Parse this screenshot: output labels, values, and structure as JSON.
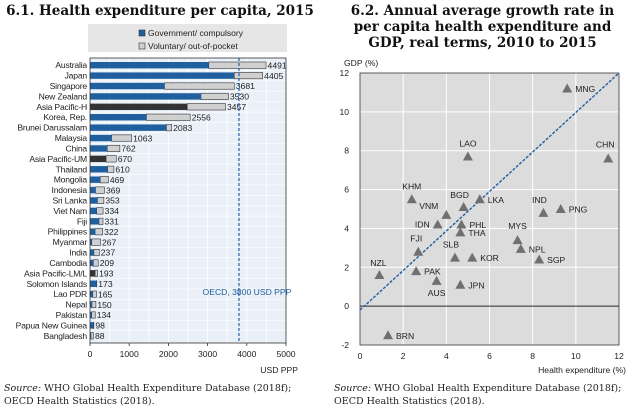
{
  "chart_data": [
    {
      "type": "bar",
      "orientation": "horizontal",
      "stacked": true,
      "title": "6.1. Health expenditure per capita, 2015",
      "xlabel": "USD PPP",
      "xlim": [
        0,
        5000
      ],
      "xticks": [
        "0",
        "1000",
        "2000",
        "3000",
        "4000",
        "5000"
      ],
      "grid": true,
      "legend_position": "top",
      "categories": [
        "Australia",
        "Japan",
        "Singapore",
        "New Zealand",
        "Asia Pacific-H",
        "Korea, Rep.",
        "Brunei Darussalam",
        "Malaysia",
        "China",
        "Asia Pacific-UM",
        "Thailand",
        "Mongolia",
        "Indonesia",
        "Sri Lanka",
        "Viet Nam",
        "Fiji",
        "Philippines",
        "Myanmar",
        "India",
        "Cambodia",
        "Asia Pacific-LM/L",
        "Solomon Islands",
        "Lao PDR",
        "Nepal",
        "Pakistan",
        "Papua New Guinea",
        "Bangladesh"
      ],
      "totals": [
        4491,
        4405,
        3681,
        3530,
        3457,
        2556,
        2083,
        1063,
        762,
        670,
        610,
        469,
        369,
        353,
        334,
        331,
        322,
        267,
        237,
        209,
        193,
        173,
        165,
        150,
        134,
        98,
        88
      ],
      "series": [
        {
          "name": "Government/ compulsory",
          "color": "#1f5f9e",
          "aggregate_color": "#333333",
          "values": [
            3030,
            3680,
            1900,
            2830,
            2480,
            1440,
            1950,
            550,
            440,
            410,
            450,
            260,
            140,
            190,
            170,
            230,
            130,
            45,
            100,
            85,
            130,
            170,
            70,
            50,
            45,
            90,
            25
          ]
        },
        {
          "name": "Voluntary/ out-of-pocket",
          "color": "#d0d0d0",
          "values": [
            1461,
            725,
            1781,
            700,
            977,
            1116,
            133,
            513,
            322,
            260,
            160,
            209,
            229,
            163,
            164,
            101,
            192,
            222,
            137,
            124,
            63,
            3,
            95,
            100,
            89,
            8,
            63
          ]
        }
      ],
      "aggregate_rows": [
        "Asia Pacific-H",
        "Asia Pacific-UM",
        "Asia Pacific-LM/L"
      ],
      "reference_line": {
        "label": "OECD, 3800 USD PPP",
        "value": 3800,
        "color": "#1f5f9e"
      },
      "source": {
        "prefix": "Source:",
        "text": "WHO Global Health Expenditure Database (2018f); OECD Health Statistics (2018)."
      }
    },
    {
      "type": "scatter",
      "title": "6.2. Annual average growth rate in per capita health expenditure and GDP, real terms, 2010 to 2015",
      "xlabel": "Health expenditure (%)",
      "ylabel": "GDP (%)",
      "xlim": [
        0,
        12
      ],
      "ylim": [
        -2,
        12
      ],
      "xticks": [
        "0",
        "2",
        "4",
        "6",
        "8",
        "10",
        "12"
      ],
      "yticks": [
        "-2",
        "0",
        "2",
        "4",
        "6",
        "8",
        "10",
        "12"
      ],
      "grid": true,
      "marker": "triangle",
      "marker_color": "#707070",
      "points": [
        {
          "label": "MNG",
          "x": 9.6,
          "y": 11.2
        },
        {
          "label": "CHN",
          "x": 11.5,
          "y": 7.6
        },
        {
          "label": "LAO",
          "x": 5.0,
          "y": 7.7
        },
        {
          "label": "KHM",
          "x": 2.4,
          "y": 5.5
        },
        {
          "label": "BGD",
          "x": 4.8,
          "y": 5.1
        },
        {
          "label": "LKA",
          "x": 5.55,
          "y": 5.5
        },
        {
          "label": "VNM",
          "x": 4.0,
          "y": 4.7
        },
        {
          "label": "IND",
          "x": 8.5,
          "y": 4.8
        },
        {
          "label": "PNG",
          "x": 9.3,
          "y": 5.0
        },
        {
          "label": "IDN",
          "x": 3.6,
          "y": 4.2
        },
        {
          "label": "PHL",
          "x": 4.7,
          "y": 4.2
        },
        {
          "label": "THA",
          "x": 4.65,
          "y": 3.8
        },
        {
          "label": "MYS",
          "x": 7.3,
          "y": 3.4
        },
        {
          "label": "FJI",
          "x": 2.7,
          "y": 2.8
        },
        {
          "label": "NPL",
          "x": 7.45,
          "y": 2.95
        },
        {
          "label": "SLB",
          "x": 4.4,
          "y": 2.5
        },
        {
          "label": "KOR",
          "x": 5.2,
          "y": 2.5
        },
        {
          "label": "SGP",
          "x": 8.3,
          "y": 2.4
        },
        {
          "label": "NZL",
          "x": 0.9,
          "y": 1.6
        },
        {
          "label": "PAK",
          "x": 2.6,
          "y": 1.8
        },
        {
          "label": "AUS",
          "x": 3.55,
          "y": 1.3
        },
        {
          "label": "JPN",
          "x": 4.65,
          "y": 1.1
        },
        {
          "label": "BRN",
          "x": 1.3,
          "y": -1.5
        }
      ],
      "reference_line": {
        "from": [
          0,
          -0.2
        ],
        "to": [
          12,
          12
        ],
        "style": "dashed",
        "color": "#1f5f9e"
      },
      "source": {
        "prefix": "Source:",
        "text": "WHO Global Health Expenditure Database (2018f); OECD Health Statistics (2018)."
      }
    }
  ]
}
